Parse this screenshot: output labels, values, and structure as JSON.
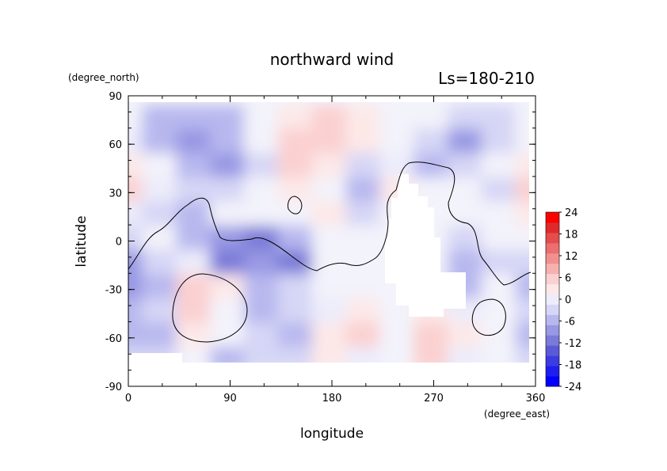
{
  "chart_data": {
    "type": "heatmap",
    "title": "northward wind",
    "subtitle": "Ls=180-210",
    "xlabel": "longitude",
    "ylabel": "latitude",
    "x_units": "(degree_east)",
    "y_units": "(degree_north)",
    "xlim": [
      0,
      360
    ],
    "ylim": [
      -90,
      90
    ],
    "x_ticks": [
      0,
      90,
      180,
      270,
      360
    ],
    "y_ticks": [
      90,
      60,
      30,
      0,
      -30,
      -60,
      -90
    ],
    "colorbar": {
      "ticks": [
        24,
        18,
        12,
        6,
        0,
        -6,
        -12,
        -18,
        -24
      ],
      "min": -24,
      "max": 24,
      "step": 3,
      "colors": [
        "#0000ff",
        "#1e1eef",
        "#3c3ce3",
        "#5a5ad8",
        "#7a7ad8",
        "#9898e4",
        "#b8b8ef",
        "#d6d6f6",
        "#ececfb",
        "#fde8e8",
        "#fbd0d0",
        "#f7b0b0",
        "#f29090",
        "#ec6e6e",
        "#e64c4c",
        "#e02a2a",
        "#ff0000"
      ]
    },
    "grid_lons": [
      0,
      30,
      60,
      90,
      120,
      150,
      180,
      210,
      240,
      270,
      300,
      330,
      360
    ],
    "grid_lats": [
      90,
      75,
      60,
      45,
      30,
      15,
      0,
      -15,
      -30,
      -45,
      -60,
      -75,
      -90
    ],
    "values": [
      [
        0,
        0,
        0,
        0,
        0,
        0,
        0,
        0,
        0,
        0,
        0,
        0,
        0
      ],
      [
        1,
        -4,
        -5,
        -4,
        1,
        5,
        6,
        3,
        1,
        0,
        -3,
        -2,
        1
      ],
      [
        2,
        -5,
        -8,
        -6,
        -1,
        6,
        8,
        3,
        0,
        -2,
        -7,
        -3,
        1
      ],
      [
        3,
        1,
        -6,
        -8,
        -2,
        7,
        5,
        -3,
        2,
        -4,
        -2,
        -1,
        3
      ],
      [
        6,
        2,
        -3,
        -2,
        -1,
        4,
        1,
        -6,
        4,
        -1,
        1,
        -2,
        6
      ],
      [
        2,
        -2,
        -5,
        -1,
        0,
        0,
        3,
        -3,
        1,
        1,
        1,
        0,
        3
      ],
      [
        -3,
        -1,
        -4,
        -9,
        -11,
        -6,
        0,
        -1,
        0,
        0,
        -3,
        0,
        -1
      ],
      [
        -7,
        -3,
        2,
        -10,
        -8,
        -10,
        0,
        -1,
        1,
        0,
        -5,
        -2,
        -3
      ],
      [
        -9,
        -4,
        6,
        4,
        -5,
        -3,
        1,
        -1,
        1,
        0,
        -4,
        0,
        -4
      ],
      [
        -5,
        -3,
        8,
        1,
        -4,
        -2,
        2,
        3,
        1,
        3,
        2,
        -1,
        -2
      ],
      [
        -6,
        -4,
        3,
        -1,
        -3,
        -4,
        3,
        6,
        1,
        7,
        3,
        1,
        -5
      ],
      [
        -2,
        -2,
        -1,
        -5,
        -2,
        -2,
        4,
        2,
        1,
        6,
        2,
        -1,
        -3
      ],
      [
        0,
        0,
        0,
        0,
        0,
        0,
        0,
        0,
        0,
        0,
        0,
        0,
        0
      ]
    ]
  }
}
